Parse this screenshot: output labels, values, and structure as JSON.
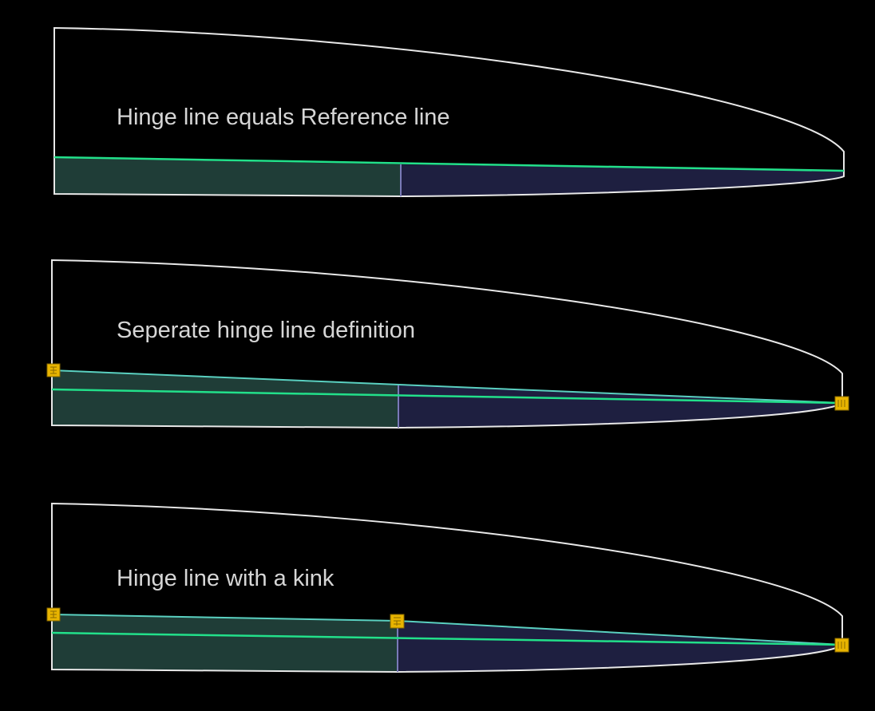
{
  "colors": {
    "background": "#000000",
    "outline": "#e8e8e8",
    "reference_line": "#22e08a",
    "hinge_line": "#5ad0c0",
    "inner_fill": "#1f3d37",
    "outer_fill": "#1e1f40",
    "divider": "#7a7ab8",
    "handle_fill": "#e8b400",
    "handle_stroke": "#8a6a00"
  },
  "panels": [
    {
      "title": "Hinge line equals Reference line",
      "handles": []
    },
    {
      "title": "Seperate hinge line definition",
      "handles": [
        "root-handle",
        "tip-handle"
      ]
    },
    {
      "title": "Hinge line with a kink",
      "handles": [
        "root-handle",
        "kink-handle",
        "tip-handle"
      ]
    }
  ]
}
